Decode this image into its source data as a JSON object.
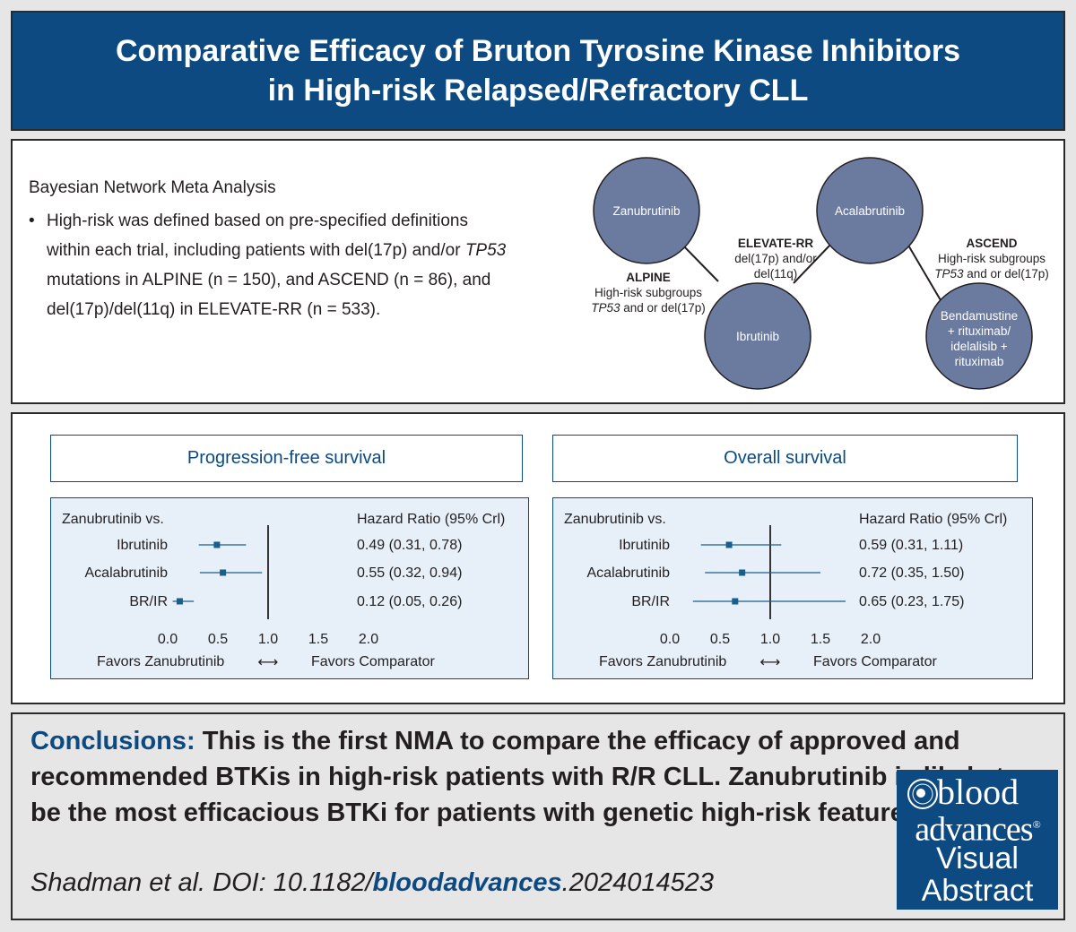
{
  "title": {
    "line1": "Comparative Efficacy of Bruton Tyrosine Kinase Inhibitors",
    "line2": "in High-risk Relapsed/Refractory CLL"
  },
  "methods": {
    "heading": "Bayesian Network Meta Analysis",
    "bullet_pre": "High-risk was defined based on pre-specified definitions within each trial, including patients with del(17p) and/or ",
    "bullet_italic": "TP53",
    "bullet_post": " mutations in ALPINE (n = 150), and ASCEND (n = 86), and del(17p)/del(11q) in ELEVATE-RR (n = 533).",
    "bullet_symbol": "•"
  },
  "network": {
    "node_color": "#6b7a9f",
    "nodes": {
      "zanubrutinib": "Zanubrutinib",
      "acalabrutinib": "Acalabrutinib",
      "ibrutinib": "Ibrutinib",
      "bendamustine_1": "Bendamustine",
      "bendamustine_2": "+ rituximab/",
      "bendamustine_3": "idelalisib +",
      "bendamustine_4": "rituximab"
    },
    "edges": {
      "alpine": {
        "name": "ALPINE",
        "line1": "High-risk subgroups",
        "line2_italic": "TP53",
        "line2_rest": " and or del(17p)"
      },
      "elevate": {
        "name": "ELEVATE-RR",
        "line1": "del(17p) and/or",
        "line2": "del(11q)"
      },
      "ascend": {
        "name": "ASCEND",
        "line1": "High-risk subgroups",
        "line2_italic": "TP53",
        "line2_rest": " and or del(17p)"
      }
    }
  },
  "results": {
    "arrow_symbol": "⟷",
    "pfs": {
      "title": "Progression-free survival",
      "vs_label": "Zanubrutinib vs.",
      "hr_header": "Hazard Ratio (95% Crl)",
      "favors_left": "Favors Zanubrutinib",
      "favors_right": "Favors Comparator"
    },
    "os": {
      "title": "Overall survival",
      "vs_label": "Zanubrutinib vs.",
      "hr_header": "Hazard Ratio (95% Crl)",
      "favors_left": "Favors Zanubrutinib",
      "favors_right": "Favors Comparator"
    }
  },
  "chart_data": [
    {
      "type": "forest",
      "title": "Progression-free survival",
      "xlim": [
        0.0,
        2.0
      ],
      "ticks": [
        "0.0",
        "0.5",
        "1.0",
        "1.5",
        "2.0"
      ],
      "tick_values": [
        0.0,
        0.5,
        1.0,
        1.5,
        2.0
      ],
      "reference": 1.0,
      "color": "#1a5e8a",
      "rows": [
        {
          "label": "Ibrutinib",
          "hr": 0.49,
          "lo": 0.31,
          "hi": 0.78,
          "text": "0.49 (0.31, 0.78)"
        },
        {
          "label": "Acalabrutinib",
          "hr": 0.55,
          "lo": 0.32,
          "hi": 0.94,
          "text": "0.55 (0.32, 0.94)"
        },
        {
          "label": "BR/IR",
          "hr": 0.12,
          "lo": 0.05,
          "hi": 0.26,
          "text": "0.12 (0.05, 0.26)"
        }
      ]
    },
    {
      "type": "forest",
      "title": "Overall survival",
      "xlim": [
        0.0,
        2.0
      ],
      "ticks": [
        "0.0",
        "0.5",
        "1.0",
        "1.5",
        "2.0"
      ],
      "tick_values": [
        0.0,
        0.5,
        1.0,
        1.5,
        2.0
      ],
      "reference": 1.0,
      "color": "#1a5e8a",
      "rows": [
        {
          "label": "Ibrutinib",
          "hr": 0.59,
          "lo": 0.31,
          "hi": 1.11,
          "text": "0.59 (0.31, 1.11)"
        },
        {
          "label": "Acalabrutinib",
          "hr": 0.72,
          "lo": 0.35,
          "hi": 1.5,
          "text": "0.72 (0.35, 1.50)"
        },
        {
          "label": "BR/IR",
          "hr": 0.65,
          "lo": 0.23,
          "hi": 1.75,
          "text": "0.65 (0.23, 1.75)"
        }
      ]
    }
  ],
  "conclusions": {
    "label": "Conclusions:",
    "text": "This is the first NMA to compare the efficacy of approved and recommended BTKis in high-risk patients with R/R CLL. Zanubrutinib is likely to be the most efficacious BTKi for patients with genetic high-risk features.",
    "citation_pre": "Shadman et al. DOI: 10.1182/",
    "citation_journal": "bloodadvances",
    "citation_post": ".2024014523"
  },
  "logo": {
    "word1": "blood",
    "word2": "advances",
    "registered": "®",
    "word3": "Visual",
    "word4": "Abstract"
  },
  "colors": {
    "brand_blue": "#0c4a81",
    "panel_bg": "#e7f0f8",
    "page_bg": "#e6e6e6"
  }
}
